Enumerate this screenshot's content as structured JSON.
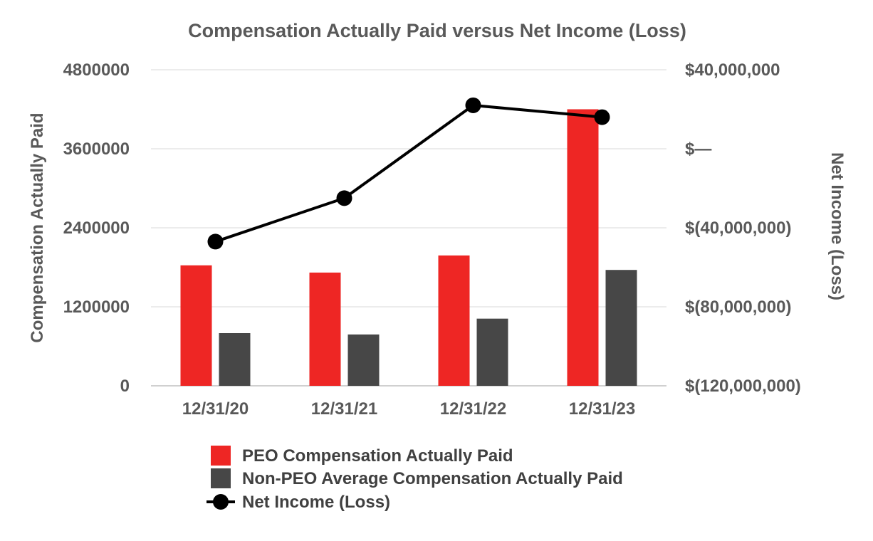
{
  "chart_data": {
    "type": "bar",
    "title": "Compensation Actually Paid versus Net Income (Loss)",
    "ylabel": "Compensation Actually Paid",
    "y2label": "Net Income (Loss)",
    "categories": [
      "12/31/20",
      "12/31/21",
      "12/31/22",
      "12/31/23"
    ],
    "ylim": [
      0,
      4800000
    ],
    "yticks": [
      "0",
      "1200000",
      "2400000",
      "3600000",
      "4800000"
    ],
    "y2lim": [
      -120000000,
      40000000
    ],
    "y2ticks": [
      "$(120,000,000)",
      "$(80,000,000)",
      "$(40,000,000)",
      "$—",
      "$40,000,000"
    ],
    "grid": true,
    "legend_position": "bottom",
    "series": [
      {
        "name": "PEO Compensation Actually Paid",
        "type": "bar",
        "axis": "left",
        "color": "#ee2624",
        "values": [
          1830000,
          1720000,
          1980000,
          4200000
        ]
      },
      {
        "name": "Non-PEO Average Compensation Actually Paid",
        "type": "bar",
        "axis": "left",
        "color": "#474747",
        "values": [
          800000,
          780000,
          1020000,
          1760000
        ]
      },
      {
        "name": "Net Income (Loss)",
        "type": "line",
        "axis": "right",
        "color": "#000000",
        "values": [
          -47000000,
          -25000000,
          22000000,
          16000000
        ]
      }
    ]
  }
}
